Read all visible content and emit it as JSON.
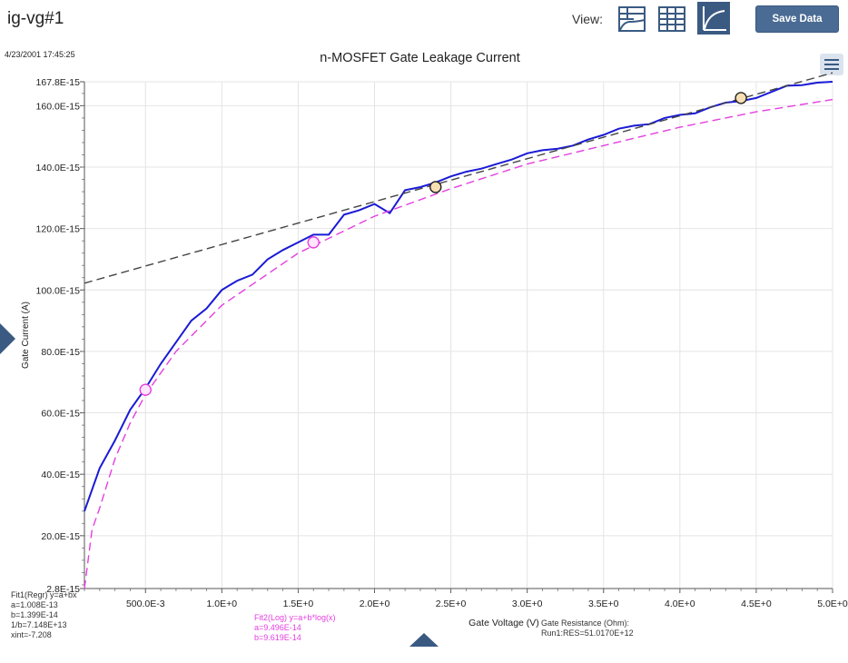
{
  "app": {
    "title": "ig-vg#1",
    "view_label": "View:",
    "view_buttons": [
      {
        "icon": "sheet-chart-icon",
        "active": false
      },
      {
        "icon": "table-grid-icon",
        "active": false
      },
      {
        "icon": "graph-curve-icon",
        "active": true
      }
    ],
    "save_label": "Save Data",
    "menu_icon": "hamburger-menu-icon"
  },
  "timestamp": "4/23/2001 17:45:25",
  "fits": {
    "fit1_lines": [
      "Fit1(Regr) y=a+bx",
      "a=1.008E-13",
      "b=1.399E-14",
      "1/b=7.148E+13",
      "xint=-7.208"
    ],
    "fit2_lines": [
      "Fit2(Log) y=a+b*log(x)",
      "a=9.496E-14",
      "b=9.619E-14"
    ],
    "resistance_lines": [
      "Gate Resistance (Ohm):",
      "Run1:RES=51.0170E+12"
    ]
  },
  "colors": {
    "accent": "#3a5a82",
    "measured": "#1a1ad6",
    "fit1": "#444444",
    "fit2": "#e43fe0",
    "grid": "#e4e4e4"
  },
  "chart_data": {
    "type": "line",
    "title": "n-MOSFET Gate Leakage Current",
    "xlabel": "Gate Voltage (V)",
    "ylabel": "Gate Current (A)",
    "xlim": [
      0.1,
      5.0
    ],
    "ylim": [
      2.8e-15,
      1.678e-13
    ],
    "grid": true,
    "x_tick_values": [
      0.5,
      1.0,
      1.5,
      2.0,
      2.5,
      3.0,
      3.5,
      4.0,
      4.5,
      5.0
    ],
    "x_tick_labels": [
      "500.0E-3",
      "1.0E+0",
      "1.5E+0",
      "2.0E+0",
      "2.5E+0",
      "3.0E+0",
      "3.5E+0",
      "4.0E+0",
      "4.5E+0",
      "5.0E+0"
    ],
    "y_tick_values": [
      2.8e-15,
      2e-14,
      4e-14,
      6e-14,
      8e-14,
      1e-13,
      1.2e-13,
      1.4e-13,
      1.6e-13,
      1.678e-13
    ],
    "y_tick_labels": [
      "2.8E-15",
      "20.0E-15",
      "40.0E-15",
      "60.0E-15",
      "80.0E-15",
      "100.0E-15",
      "120.0E-15",
      "140.0E-15",
      "160.0E-15",
      "167.8E-15"
    ],
    "series": [
      {
        "style": "solid",
        "x": [
          0.1,
          0.2,
          0.3,
          0.4,
          0.5,
          0.6,
          0.7,
          0.8,
          0.9,
          1.0,
          1.1,
          1.2,
          1.3,
          1.4,
          1.5,
          1.6,
          1.7,
          1.8,
          1.9,
          2.0,
          2.1,
          2.2,
          2.3,
          2.4,
          2.5,
          2.6,
          2.7,
          2.8,
          2.9,
          3.0,
          3.1,
          3.2,
          3.3,
          3.4,
          3.5,
          3.6,
          3.7,
          3.8,
          3.9,
          4.0,
          4.1,
          4.2,
          4.3,
          4.4,
          4.5,
          4.6,
          4.7,
          4.8,
          4.9,
          5.0
        ],
        "y": [
          2.8e-14,
          4.2e-14,
          5.1e-14,
          6.1e-14,
          6.8e-14,
          7.6e-14,
          8.3e-14,
          9e-14,
          9.4e-14,
          1e-13,
          1.03e-13,
          1.05e-13,
          1.1e-13,
          1.13e-13,
          1.155e-13,
          1.18e-13,
          1.18e-13,
          1.245e-13,
          1.26e-13,
          1.28e-13,
          1.25e-13,
          1.325e-13,
          1.335e-13,
          1.35e-13,
          1.37e-13,
          1.385e-13,
          1.395e-13,
          1.41e-13,
          1.425e-13,
          1.445e-13,
          1.455e-13,
          1.46e-13,
          1.47e-13,
          1.49e-13,
          1.505e-13,
          1.525e-13,
          1.535e-13,
          1.54e-13,
          1.56e-13,
          1.57e-13,
          1.575e-13,
          1.595e-13,
          1.61e-13,
          1.615e-13,
          1.625e-13,
          1.645e-13,
          1.665e-13,
          1.667e-13,
          1.675e-13,
          1.678e-13
        ]
      },
      {
        "style": "dashed",
        "note_ref": "fit1",
        "x": [
          0.1,
          5.0
        ],
        "y": [
          1.022e-13,
          1.707e-13
        ]
      },
      {
        "style": "dashed",
        "note_ref": "fit2",
        "x": [
          0.1,
          0.15,
          0.2,
          0.3,
          0.4,
          0.5,
          0.7,
          1.0,
          1.5,
          2.0,
          2.5,
          3.0,
          3.5,
          4.0,
          4.5,
          5.0
        ],
        "y": [
          2.8e-15,
          2.2e-14,
          2.9e-14,
          4.5e-14,
          5.67e-14,
          6.6e-14,
          8e-14,
          9.5e-14,
          1.12e-13,
          1.24e-13,
          1.33e-13,
          1.41e-13,
          1.47e-13,
          1.53e-13,
          1.58e-13,
          1.62e-13
        ]
      }
    ],
    "markers": [
      {
        "x": 0.5,
        "y": 6.75e-14,
        "fit": "fit2"
      },
      {
        "x": 1.6,
        "y": 1.155e-13,
        "fit": "fit2"
      },
      {
        "x": 2.4,
        "y": 1.335e-13,
        "fit": "fit1"
      },
      {
        "x": 4.4,
        "y": 1.625e-13,
        "fit": "fit1"
      }
    ]
  }
}
